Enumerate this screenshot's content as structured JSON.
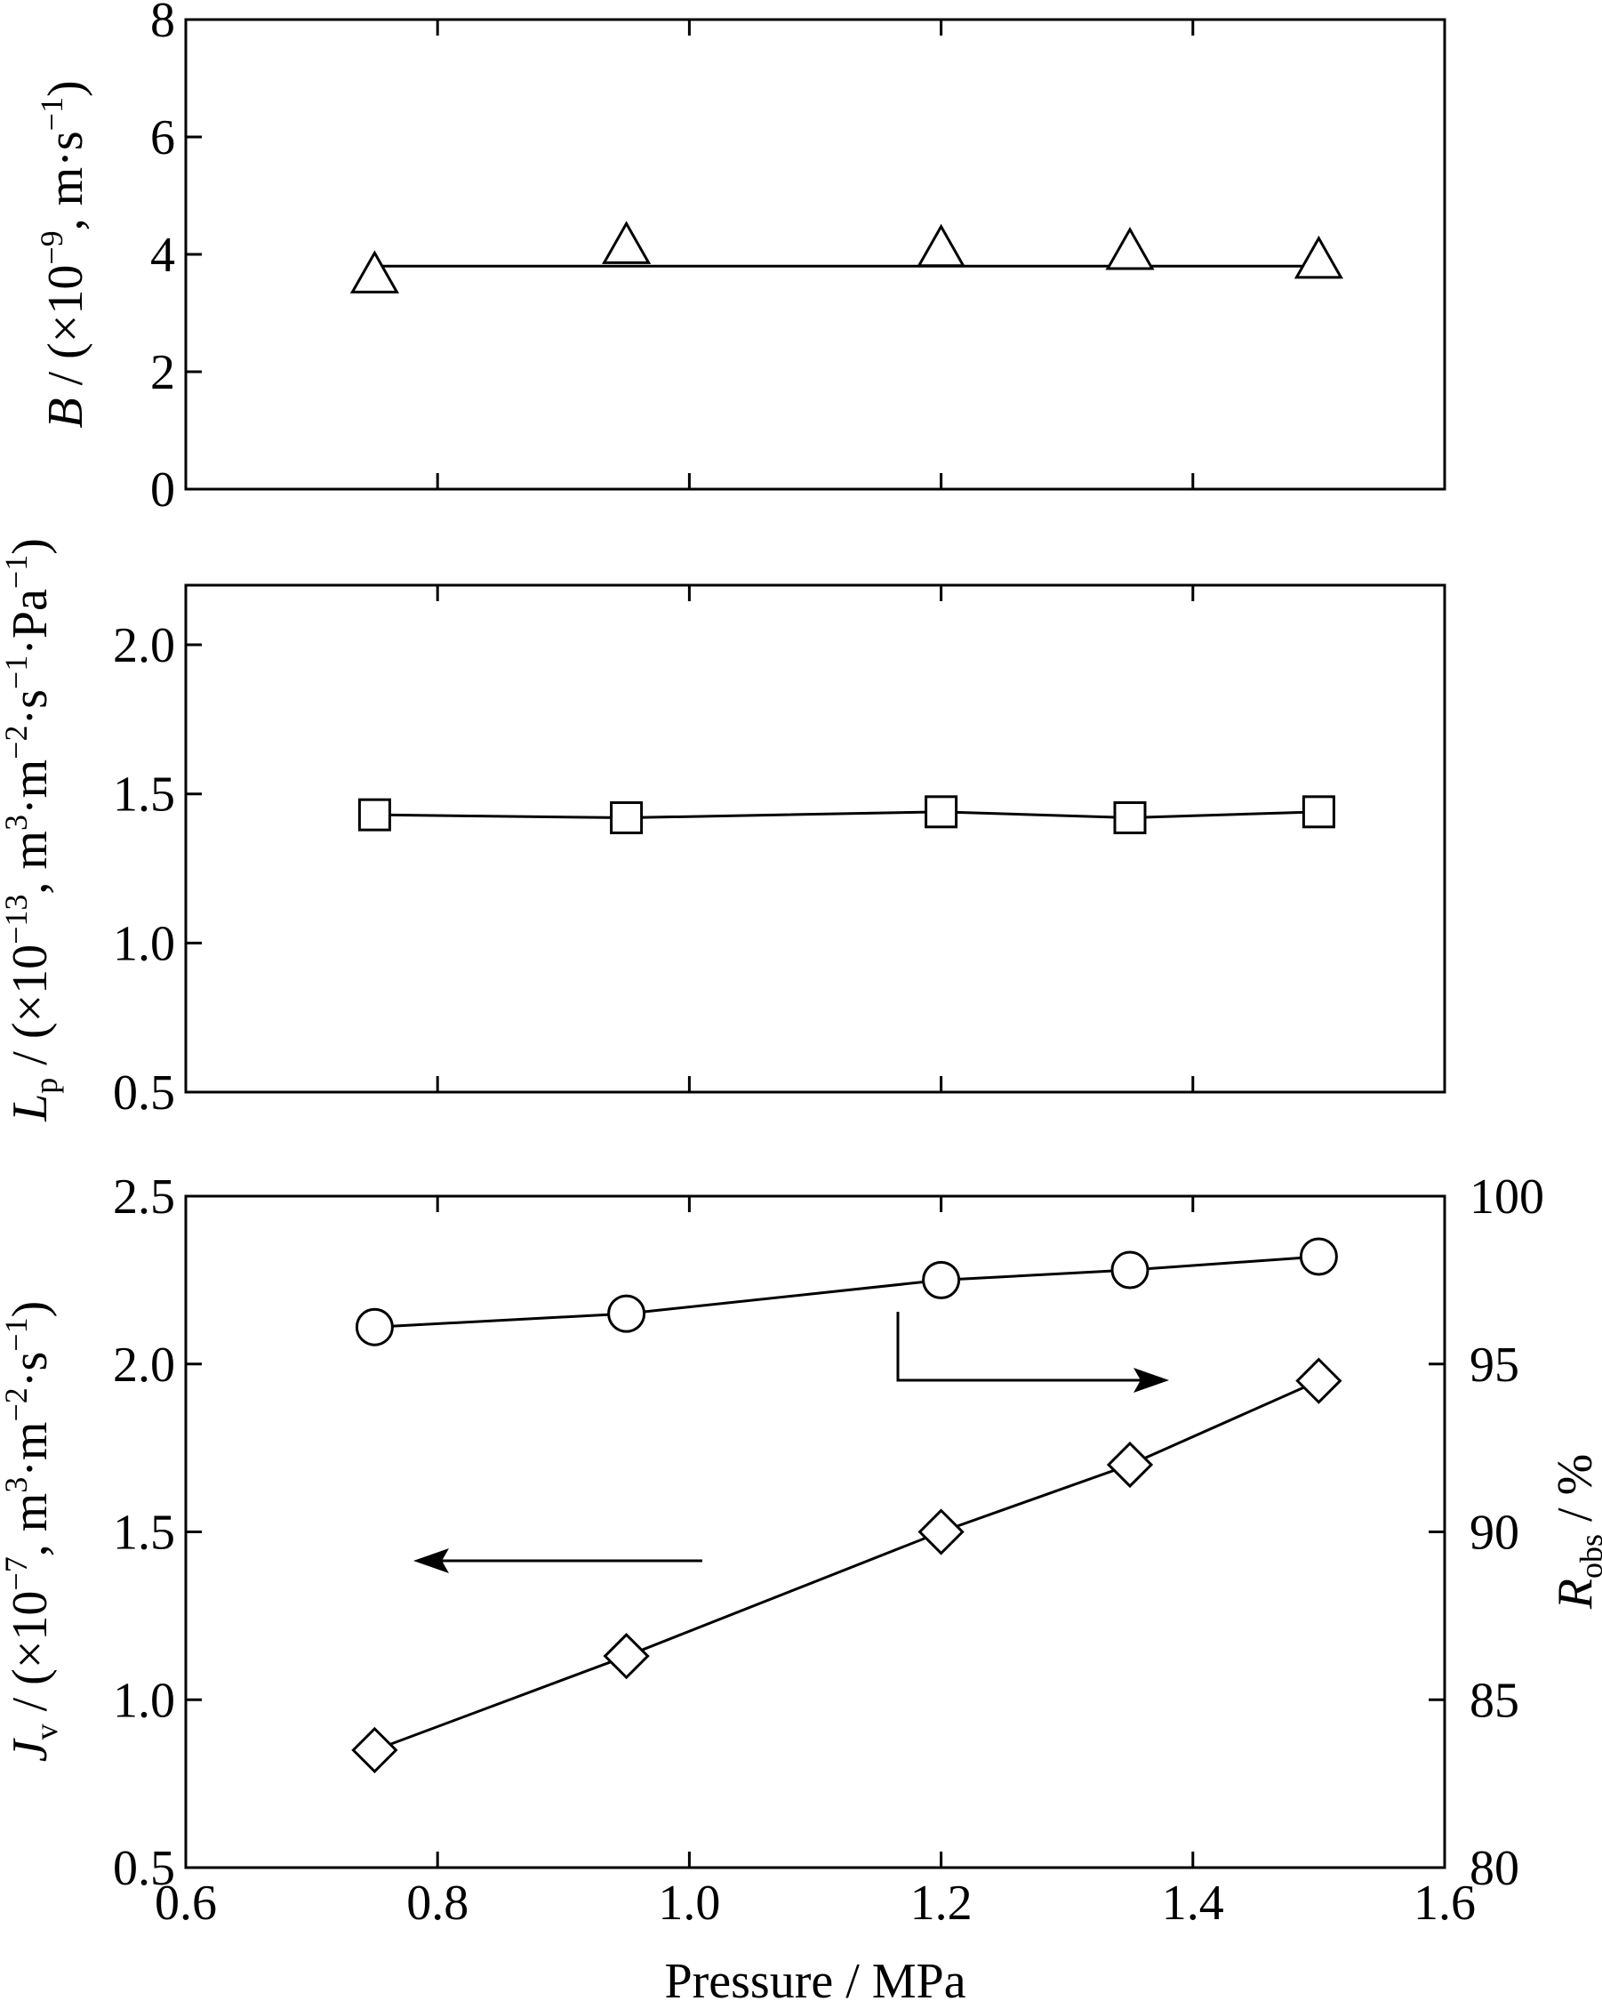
{
  "chart_data": [
    {
      "type": "scatter",
      "panel": "top",
      "x": [
        0.75,
        0.95,
        1.2,
        1.35,
        1.5
      ],
      "series": [
        {
          "marker": "triangle",
          "values": [
            3.6,
            4.1,
            4.05,
            4.0,
            3.85
          ]
        }
      ],
      "fit_line": {
        "x": [
          0.75,
          1.5
        ],
        "y": [
          3.8,
          3.8
        ]
      },
      "xlim": [
        0.6,
        1.6
      ],
      "ylim": [
        0,
        8
      ],
      "yticks": [
        "0",
        "2",
        "4",
        "6",
        "8"
      ],
      "ylabel": "B / (×10⁻⁹, m·s⁻¹)"
    },
    {
      "type": "line",
      "panel": "middle",
      "x": [
        0.75,
        0.95,
        1.2,
        1.35,
        1.5
      ],
      "series": [
        {
          "marker": "square",
          "values": [
            1.43,
            1.42,
            1.44,
            1.42,
            1.44
          ]
        }
      ],
      "xlim": [
        0.6,
        1.6
      ],
      "ylim": [
        0.5,
        2.2
      ],
      "yticks": [
        "0.5",
        "1.0",
        "1.5",
        "2.0"
      ],
      "ylabel": "Lp / (×10⁻¹³, m³·m⁻²·s⁻¹·Pa⁻¹)"
    },
    {
      "type": "line",
      "panel": "bottom",
      "x": [
        0.75,
        0.95,
        1.2,
        1.35,
        1.5
      ],
      "series": [
        {
          "marker": "diamond",
          "axis": "left",
          "values": [
            0.85,
            1.13,
            1.5,
            1.7,
            1.95
          ]
        },
        {
          "marker": "circle",
          "axis": "right",
          "values": [
            96.1,
            96.5,
            97.5,
            97.8,
            98.2
          ]
        }
      ],
      "xlim": [
        0.6,
        1.6
      ],
      "ylim": [
        0.5,
        2.5
      ],
      "ylim_right": [
        80,
        100
      ],
      "xticks": [
        "0.6",
        "0.8",
        "1.0",
        "1.2",
        "1.4",
        "1.6"
      ],
      "yticks": [
        "0.5",
        "1.0",
        "1.5",
        "2.0",
        "2.5"
      ],
      "yticks_right": [
        "80",
        "85",
        "90",
        "95",
        "100"
      ],
      "ylabel": "Jv / (×10⁻⁷, m³·m⁻²·s⁻¹)",
      "ylabel_right": "Robs / %",
      "xlabel": "Pressure / MPa"
    }
  ]
}
